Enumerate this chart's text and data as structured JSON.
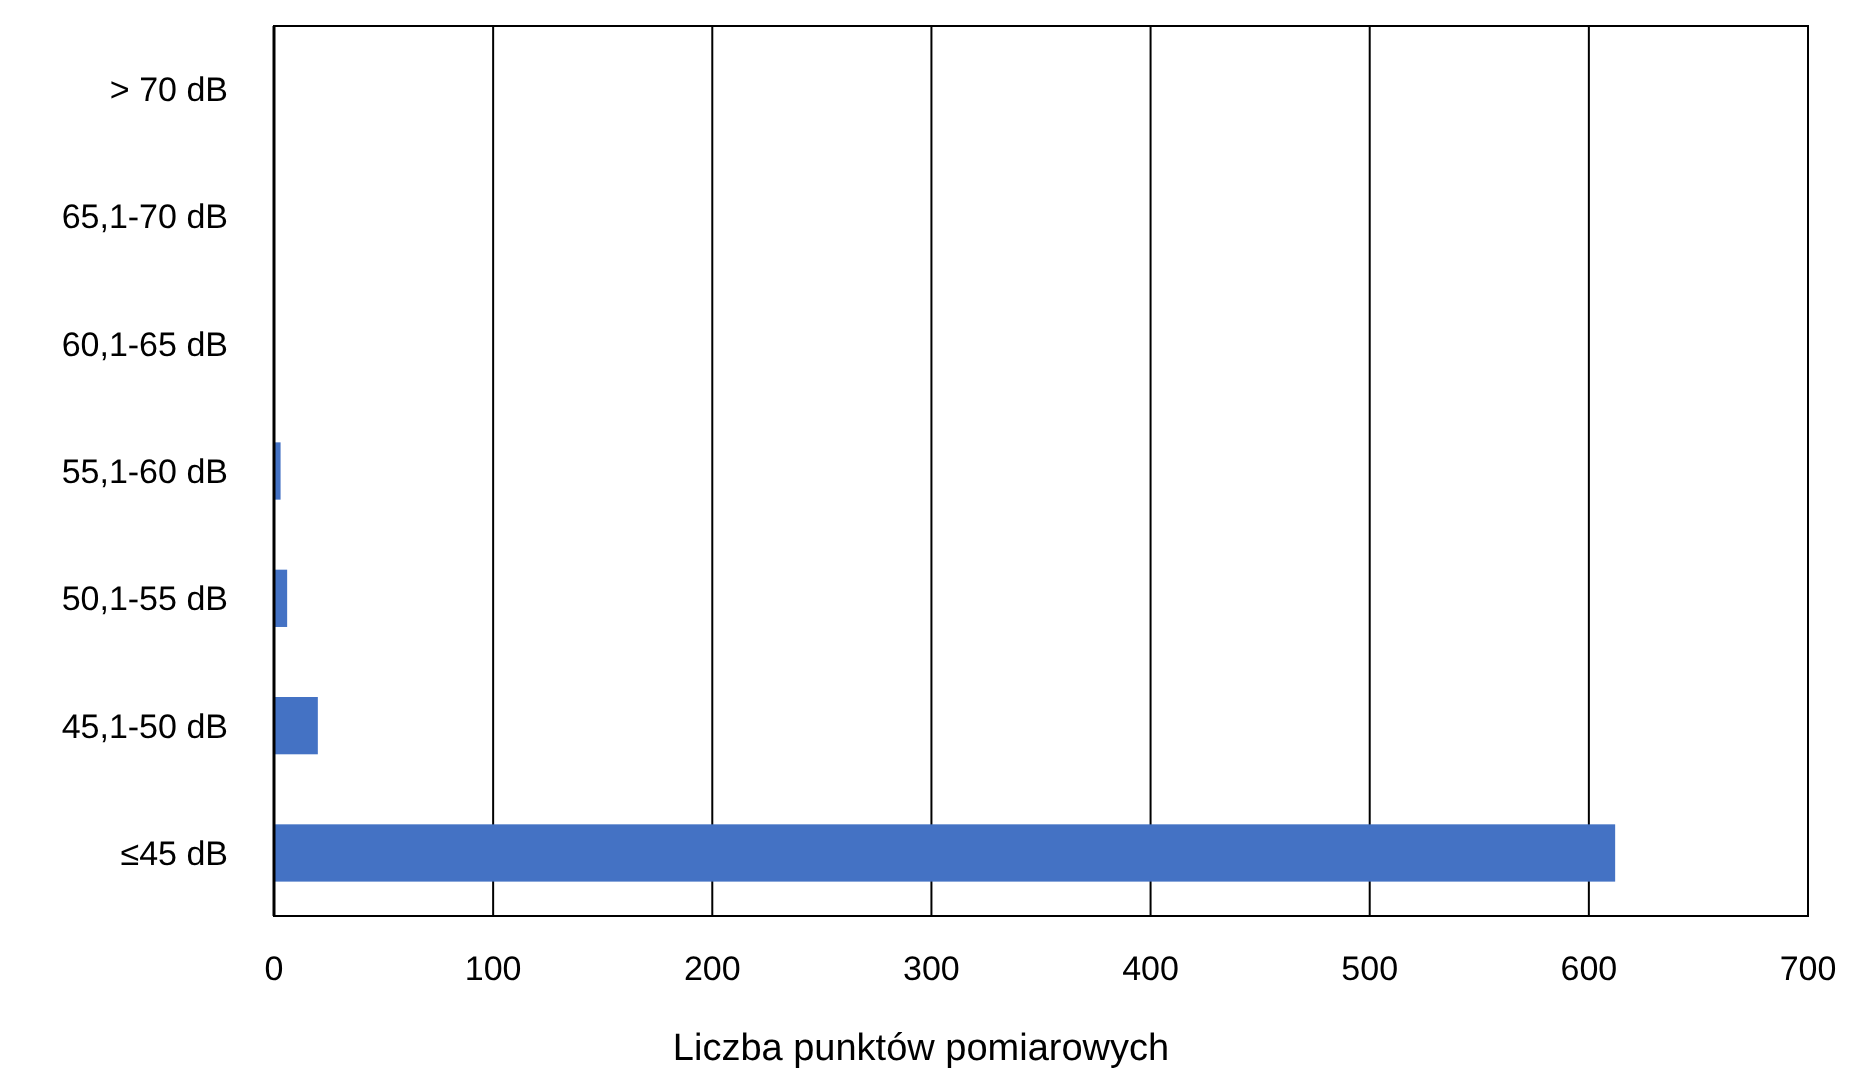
{
  "chart_data": {
    "type": "bar",
    "orientation": "horizontal",
    "xlabel": "Liczba punktów pomiarowych",
    "categories": [
      "> 70 dB",
      "65,1-70 dB",
      "60,1-65 dB",
      "55,1-60 dB",
      "50,1-55 dB",
      "45,1-50 dB",
      "≤45 dB"
    ],
    "values": [
      0,
      0,
      0,
      3,
      6,
      20,
      612
    ],
    "color": "#4472c4",
    "xlim": [
      0,
      700
    ],
    "xticks": [
      0,
      100,
      200,
      300,
      400,
      500,
      600,
      700
    ],
    "grid": "x"
  }
}
